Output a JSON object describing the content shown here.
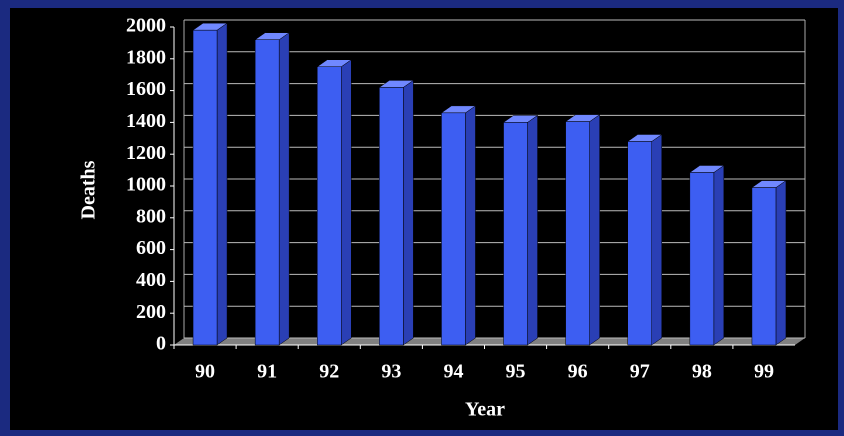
{
  "chart_data": {
    "type": "bar3d",
    "categories": [
      "90",
      "91",
      "92",
      "93",
      "94",
      "95",
      "96",
      "97",
      "98",
      "99"
    ],
    "values": [
      1980,
      1920,
      1750,
      1620,
      1460,
      1400,
      1405,
      1280,
      1085,
      990
    ],
    "color": "#3d5ef2",
    "x_label": "Year",
    "y_label": "Deaths",
    "ylim": [
      0,
      2000
    ],
    "yticks": [
      0,
      200,
      400,
      600,
      800,
      1000,
      1200,
      1400,
      1600,
      1800,
      2000
    ],
    "grid": true
  }
}
